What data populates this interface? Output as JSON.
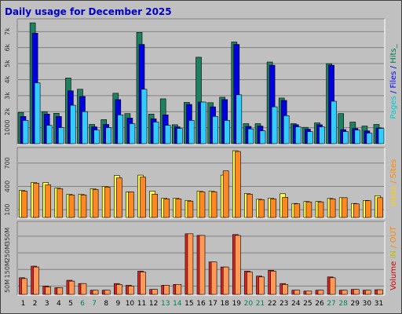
{
  "chart_data": {
    "type": "bar",
    "title": "Daily usage for December 2025",
    "categories": [
      "1",
      "2",
      "3",
      "4",
      "5",
      "6",
      "7",
      "8",
      "9",
      "10",
      "11",
      "12",
      "13",
      "14",
      "15",
      "16",
      "17",
      "18",
      "19",
      "20",
      "21",
      "22",
      "23",
      "24",
      "25",
      "26",
      "27",
      "28",
      "29",
      "30",
      "31"
    ],
    "weekend_days": [
      "6",
      "7",
      "13",
      "14",
      "20",
      "21",
      "27",
      "28"
    ],
    "panels": [
      {
        "id": "hits",
        "ylim": [
          0,
          7700
        ],
        "yticks": [
          1000,
          2000,
          3000,
          4000,
          5000,
          6000,
          7000
        ],
        "ytick_labels": [
          "1000",
          "2k",
          "3k",
          "4k",
          "5k",
          "6k",
          "7k"
        ],
        "legend": [
          {
            "text": "Pages",
            "color": "#00cccc"
          },
          {
            "text": " / ",
            "color": "#0000cc"
          },
          {
            "text": "Files",
            "color": "#0000ff"
          },
          {
            "text": " / ",
            "color": "#0000cc"
          },
          {
            "text": "Hits",
            "color": "#007a4d"
          },
          {
            "text": "_",
            "color": "#007a4d"
          }
        ],
        "series": [
          {
            "name": "Hits",
            "color": "#1e8060",
            "values": [
              1950,
              7550,
              2000,
              1900,
              4100,
              3400,
              1200,
              1500,
              3150,
              1880,
              6950,
              1850,
              2800,
              1180,
              2580,
              5400,
              2560,
              2900,
              6350,
              1250,
              1250,
              5100,
              2850,
              1250,
              1020,
              1300,
              5000,
              1880,
              1350,
              1100,
              1200
            ]
          },
          {
            "name": "Files",
            "color": "#0000e0",
            "values": [
              1700,
              6900,
              1850,
              1700,
              3300,
              2950,
              1050,
              1200,
              2750,
              1600,
              6200,
              1550,
              1800,
              1050,
              2450,
              2600,
              2300,
              2750,
              6200,
              1080,
              1100,
              4900,
              2700,
              1180,
              900,
              1180,
              4900,
              880,
              950,
              800,
              980
            ]
          },
          {
            "name": "Pages",
            "color": "#33ccff",
            "values": [
              1450,
              3800,
              1150,
              1000,
              2400,
              2000,
              850,
              1000,
              1800,
              1250,
              3400,
              1350,
              1150,
              950,
              1450,
              2600,
              1700,
              1450,
              3050,
              920,
              800,
              2300,
              1750,
              1050,
              750,
              1050,
              2650,
              750,
              850,
              650,
              950
            ]
          }
        ]
      },
      {
        "id": "visits",
        "ylim": [
          0,
          880
        ],
        "yticks": [
          100,
          400,
          700
        ],
        "ytick_labels": [
          "100",
          "400",
          "700"
        ],
        "legend": [
          {
            "text": "Visits",
            "color": "#ffcc00"
          },
          {
            "text": " / ",
            "color": "#ff8800"
          },
          {
            "text": "Sites",
            "color": "#ff8800"
          }
        ],
        "series": [
          {
            "name": "Visits",
            "color": "#ffff44",
            "values": [
              350,
              450,
              450,
              380,
              300,
              300,
              370,
              400,
              540,
              330,
              545,
              340,
              250,
              250,
              220,
              340,
              340,
              545,
              860,
              310,
              235,
              250,
              305,
              180,
              205,
              205,
              245,
              255,
              180,
              220,
              280
            ]
          },
          {
            "name": "Sites",
            "color": "#ff8822",
            "values": [
              340,
              440,
              420,
              370,
              290,
              290,
              360,
              390,
              510,
              330,
              520,
              300,
              240,
              240,
              210,
              330,
              330,
              600,
              850,
              300,
              230,
              240,
              260,
              175,
              200,
              200,
              240,
              255,
              175,
              215,
              255
            ]
          }
        ]
      },
      {
        "id": "volume",
        "ylim": [
          0,
          430
        ],
        "yticks": [
          50,
          150,
          250,
          350
        ],
        "ytick_labels": [
          "50M",
          "150M",
          "250M",
          "350M"
        ],
        "legend": [
          {
            "text": "Volume",
            "color": "#cc0000"
          },
          {
            "text": " IN ",
            "color": "#bbbb00"
          },
          {
            "text": "/",
            "color": "#ff8800"
          },
          {
            "text": " OUT ",
            "color": "#ff8800"
          }
        ],
        "series": [
          {
            "name": "Volume",
            "color": "#dd2222",
            "values": [
              100,
              170,
              50,
              40,
              85,
              65,
              25,
              25,
              65,
              55,
              140,
              30,
              55,
              60,
              365,
              355,
              195,
              165,
              360,
              140,
              110,
              145,
              65,
              25,
              20,
              25,
              105,
              25,
              30,
              25,
              28
            ]
          },
          {
            "name": "OUT",
            "color": "#ff9955",
            "values": [
              95,
              165,
              45,
              40,
              80,
              65,
              25,
              25,
              60,
              50,
              135,
              30,
              55,
              60,
              365,
              355,
              195,
              165,
              355,
              135,
              105,
              140,
              60,
              25,
              20,
              25,
              100,
              25,
              30,
              25,
              28
            ]
          }
        ]
      }
    ]
  }
}
